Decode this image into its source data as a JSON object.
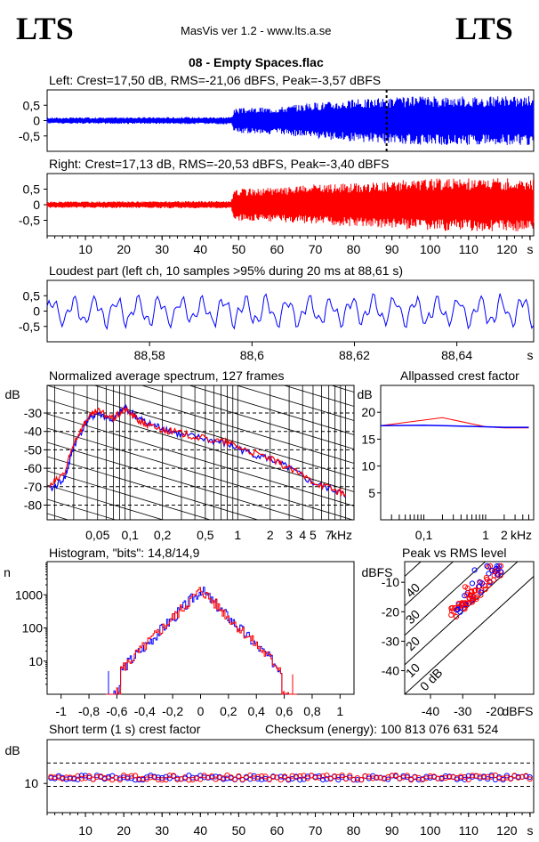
{
  "header": {
    "logo_left": "LTS",
    "logo_right": "LTS",
    "app_title": "MasVis ver 1.2 - www.lts.a.se",
    "file_title": "08 - Empty Spaces.flac"
  },
  "colors": {
    "left": "#0000ff",
    "right": "#ff0000",
    "grid": "#000000"
  },
  "chart_data": [
    {
      "id": "left-waveform",
      "type": "line",
      "title": "Left: Crest=17,50 dB, RMS=-21,06 dBFS, Peak=-3,57 dBFS",
      "yticks": [
        "0,5",
        "0",
        "-0,5"
      ],
      "ylim": [
        -1,
        1
      ],
      "xlim": [
        0,
        127
      ],
      "envelope": [
        {
          "t": 0,
          "amp": 0.1
        },
        {
          "t": 48,
          "amp": 0.12
        },
        {
          "t": 49,
          "amp": 0.4
        },
        {
          "t": 60,
          "amp": 0.45
        },
        {
          "t": 70,
          "amp": 0.6
        },
        {
          "t": 88,
          "amp": 0.75
        },
        {
          "t": 100,
          "amp": 0.8
        },
        {
          "t": 127,
          "amp": 0.8
        }
      ],
      "marker_t": 88.61
    },
    {
      "id": "right-waveform",
      "type": "line",
      "title": "Right: Crest=17,13 dB, RMS=-20,53 dBFS, Peak=-3,40 dBFS",
      "yticks": [
        "0,5",
        "0",
        "-0,5"
      ],
      "ylim": [
        -1,
        1
      ],
      "xlim": [
        0,
        127
      ],
      "xticks": [
        "10",
        "20",
        "30",
        "40",
        "50",
        "60",
        "70",
        "80",
        "90",
        "100",
        "110",
        "120",
        "s"
      ],
      "envelope": [
        {
          "t": 0,
          "amp": 0.1
        },
        {
          "t": 48,
          "amp": 0.12
        },
        {
          "t": 49,
          "amp": 0.5
        },
        {
          "t": 60,
          "amp": 0.55
        },
        {
          "t": 70,
          "amp": 0.65
        },
        {
          "t": 88,
          "amp": 0.75
        },
        {
          "t": 100,
          "amp": 0.85
        },
        {
          "t": 127,
          "amp": 0.85
        }
      ]
    },
    {
      "id": "loudest-part",
      "type": "line",
      "title": "Loudest part (left  ch, 10 samples >95% during 20 ms at 88,61 s)",
      "yticks": [
        "0,5",
        "0",
        "-0,5"
      ],
      "ylim": [
        -1,
        1
      ],
      "xlim": [
        88.56,
        88.655
      ],
      "xticks": [
        "88,58",
        "88,6",
        "88,62",
        "88,64",
        "s"
      ]
    },
    {
      "id": "spectrum",
      "type": "line",
      "title": "Normalized average spectrum, 127 frames",
      "ylabel": "dB",
      "yticks": [
        "-30",
        "-40",
        "-50",
        "-60",
        "-70",
        "-80"
      ],
      "ylim": [
        -88,
        -15
      ],
      "xticks": [
        "0,05",
        "0,1",
        "0,2",
        "0,5",
        "1",
        "2",
        "3",
        "4",
        "5",
        "7",
        "kHz"
      ],
      "xscale": "log",
      "series": [
        {
          "color": "blue",
          "points": [
            [
              0.018,
              -72
            ],
            [
              0.025,
              -65
            ],
            [
              0.03,
              -48
            ],
            [
              0.04,
              -34
            ],
            [
              0.05,
              -30
            ],
            [
              0.07,
              -34
            ],
            [
              0.09,
              -27
            ],
            [
              0.12,
              -33
            ],
            [
              0.15,
              -36
            ],
            [
              0.2,
              -38
            ],
            [
              0.3,
              -42
            ],
            [
              0.5,
              -44
            ],
            [
              0.8,
              -47
            ],
            [
              1.2,
              -51
            ],
            [
              2,
              -55
            ],
            [
              3,
              -60
            ],
            [
              5,
              -68
            ],
            [
              8,
              -72
            ],
            [
              10,
              -75
            ]
          ]
        },
        {
          "color": "red",
          "points": [
            [
              0.018,
              -70
            ],
            [
              0.025,
              -62
            ],
            [
              0.03,
              -46
            ],
            [
              0.04,
              -33
            ],
            [
              0.05,
              -29
            ],
            [
              0.07,
              -33
            ],
            [
              0.09,
              -28
            ],
            [
              0.12,
              -34
            ],
            [
              0.15,
              -37
            ],
            [
              0.2,
              -39
            ],
            [
              0.3,
              -41
            ],
            [
              0.5,
              -44
            ],
            [
              0.8,
              -46
            ],
            [
              1.2,
              -50
            ],
            [
              2,
              -55
            ],
            [
              3,
              -60
            ],
            [
              5,
              -67
            ],
            [
              8,
              -72
            ],
            [
              10,
              -74
            ]
          ]
        }
      ]
    },
    {
      "id": "allpassed-crest",
      "type": "line",
      "title": "Allpassed crest factor",
      "ylabel": "dB",
      "yticks": [
        "20",
        "15",
        "10",
        "5"
      ],
      "ylim": [
        0,
        25
      ],
      "xticks": [
        "0,1",
        "1",
        "2",
        "kHz"
      ],
      "xscale": "log",
      "series": [
        {
          "color": "red",
          "points": [
            [
              0.02,
              17.5
            ],
            [
              0.2,
              19
            ],
            [
              1,
              17.3
            ],
            [
              2,
              17.1
            ],
            [
              5,
              17.1
            ]
          ]
        },
        {
          "color": "blue",
          "points": [
            [
              0.02,
              17.5
            ],
            [
              0.1,
              17.6
            ],
            [
              1,
              17.3
            ],
            [
              2,
              17.2
            ],
            [
              5,
              17.2
            ]
          ]
        }
      ]
    },
    {
      "id": "histogram",
      "type": "line",
      "title": "Histogram, \"bits\": 14,8/14,9",
      "ylabel": "n",
      "yticks": [
        "1000",
        "100",
        "10"
      ],
      "yscale": "log",
      "xticks": [
        "-1",
        "-0,8",
        "-0,6",
        "-0,4",
        "-0,2",
        "0",
        "0,2",
        "0,4",
        "0,6",
        "0,8",
        "1"
      ],
      "xlim": [
        -1.1,
        1.1
      ]
    },
    {
      "id": "peak-vs-rms",
      "type": "scatter",
      "title": "Peak vs RMS level",
      "ylabel": "dBFS",
      "yticks": [
        "-10",
        "-20",
        "-30",
        "-40"
      ],
      "xticks": [
        "-40",
        "-30",
        "-20",
        "dBFS"
      ],
      "diagonal_labels": [
        "40",
        "30",
        "20",
        "10",
        "0 dB"
      ],
      "xlim": [
        -48,
        -8
      ],
      "ylim": [
        -48,
        -3
      ]
    },
    {
      "id": "short-term-crest",
      "type": "scatter",
      "title": "Short term (1 s) crest factor",
      "ylabel": "dB",
      "yticks": [
        "10"
      ],
      "xticks": [
        "10",
        "20",
        "30",
        "40",
        "50",
        "60",
        "70",
        "80",
        "90",
        "100",
        "110",
        "120",
        "s"
      ],
      "xlim": [
        0,
        127
      ],
      "ylim": [
        0,
        25
      ]
    }
  ],
  "checksum": "Checksum (energy):   100 813 076 631 524"
}
